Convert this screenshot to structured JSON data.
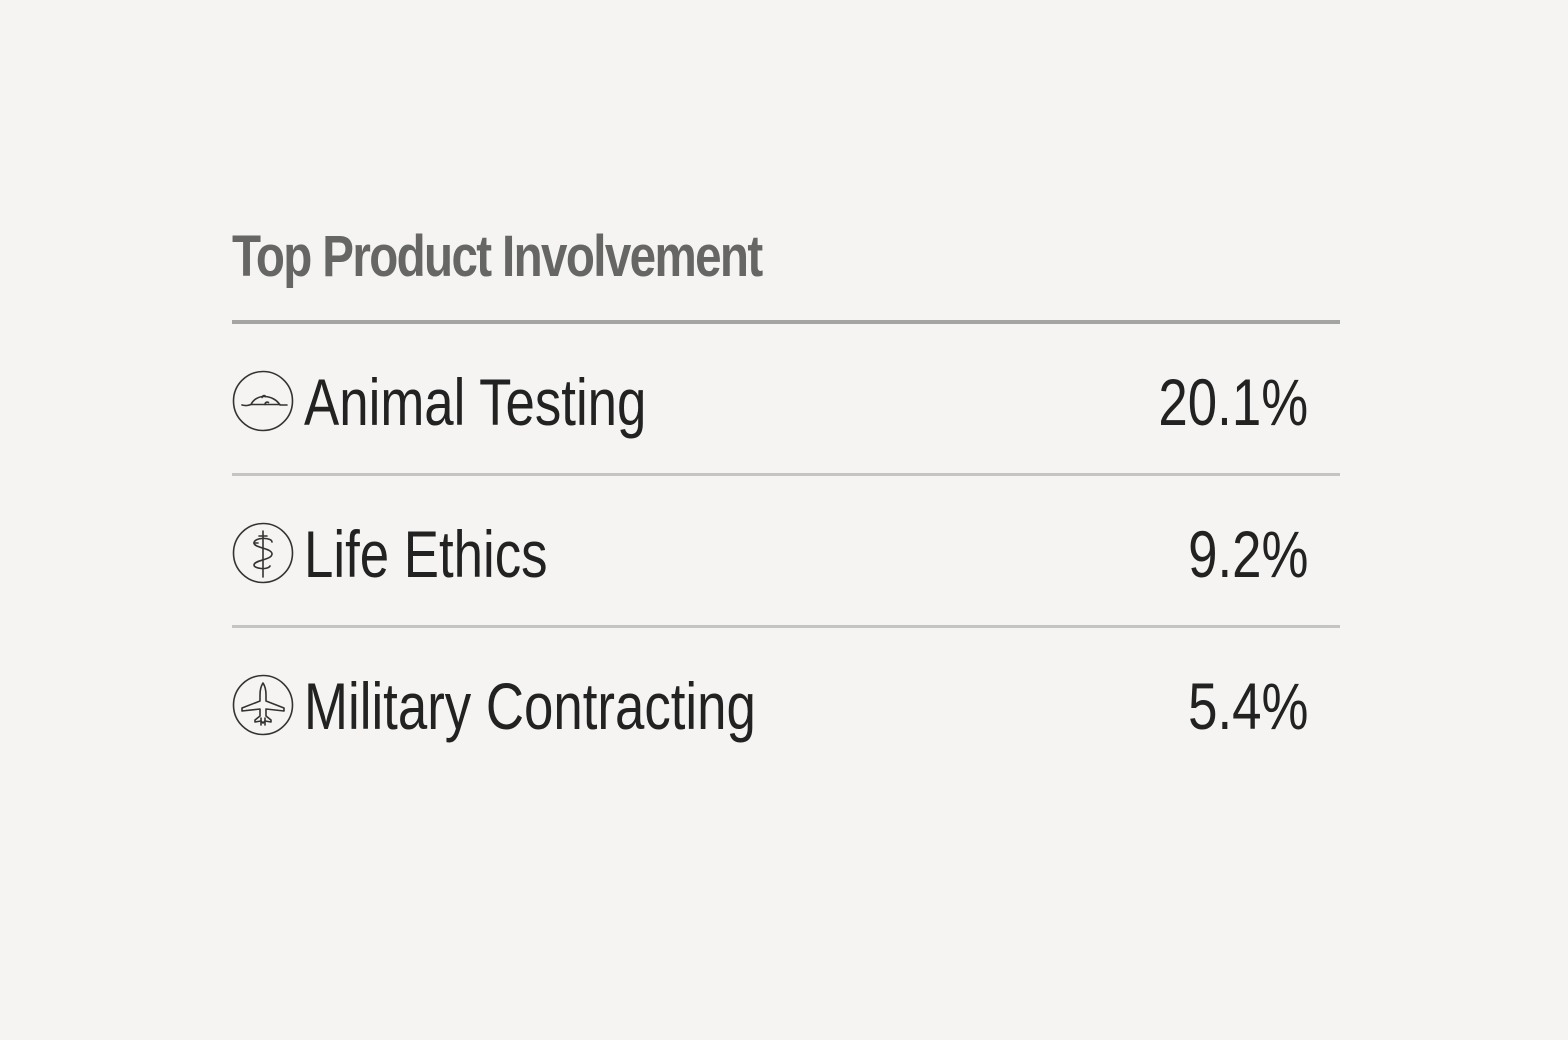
{
  "title": "Top Product Involvement",
  "colors": {
    "background": "#f5f4f2",
    "title_text": "#666664",
    "row_text": "#222222",
    "top_rule": "#a4a4a2",
    "row_rule": "#c4c4c2"
  },
  "items": [
    {
      "icon": "mouse-icon",
      "label": "Animal Testing",
      "value": "20.1%"
    },
    {
      "icon": "caduceus-icon",
      "label": "Life Ethics",
      "value": "9.2%"
    },
    {
      "icon": "fighter-jet-icon",
      "label": "Military Contracting",
      "value": "5.4%"
    }
  ]
}
